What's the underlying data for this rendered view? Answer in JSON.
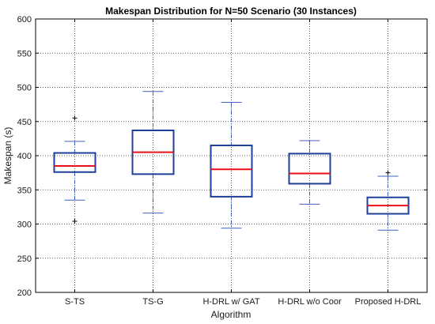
{
  "chart_data": {
    "type": "box",
    "title": "Makespan Distribution for N=50 Scenario (30 Instances)",
    "xlabel": "Algorithm",
    "ylabel": "Makespan (s)",
    "ylim": [
      200,
      600
    ],
    "yticks": [
      200,
      250,
      300,
      350,
      400,
      450,
      500,
      550,
      600
    ],
    "grid": true,
    "categories": [
      "S-TS",
      "TS-G",
      "H-DRL w/ GAT",
      "H-DRL w/o Coor",
      "Proposed H-DRL"
    ],
    "boxes": [
      {
        "whisker_low": 335,
        "q1": 376,
        "median": 385,
        "q3": 404,
        "whisker_high": 421,
        "outliers": [
          304,
          455
        ]
      },
      {
        "whisker_low": 316,
        "q1": 373,
        "median": 405,
        "q3": 437,
        "whisker_high": 494,
        "outliers": []
      },
      {
        "whisker_low": 294,
        "q1": 340,
        "median": 380,
        "q3": 415,
        "whisker_high": 478,
        "outliers": []
      },
      {
        "whisker_low": 329,
        "q1": 359,
        "median": 374,
        "q3": 403,
        "whisker_high": 422,
        "outliers": []
      },
      {
        "whisker_low": 291,
        "q1": 315,
        "median": 327,
        "q3": 339,
        "whisker_high": 370,
        "outliers": [
          375
        ]
      }
    ],
    "colors": {
      "box": "#1f3f99",
      "median": "#e8101a",
      "whisker": "#4060c0",
      "grid": "#333333"
    }
  }
}
